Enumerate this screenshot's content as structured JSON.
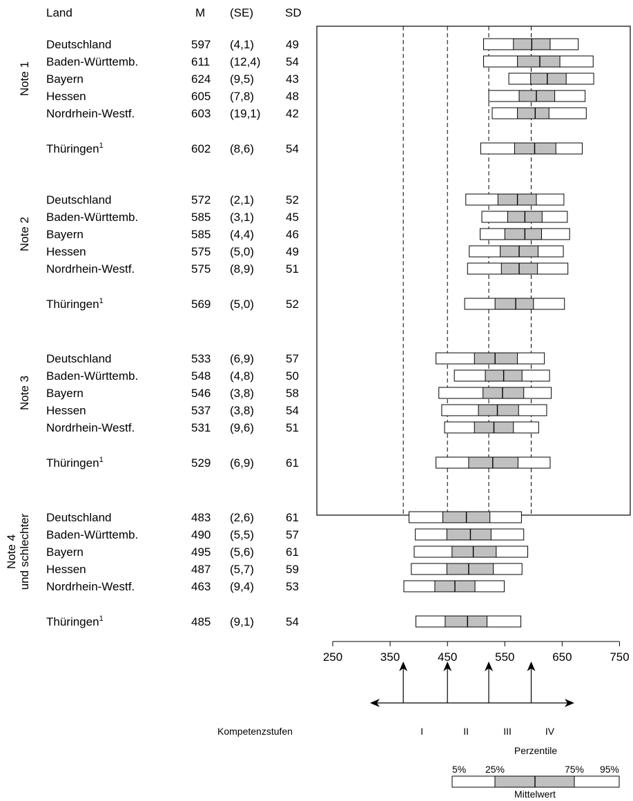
{
  "chart_data": {
    "type": "percentile-band",
    "columns": {
      "land": "Land",
      "m": "M",
      "se": "(SE)",
      "sd": "SD"
    },
    "x_ticks": [
      250,
      350,
      450,
      550,
      650,
      750
    ],
    "xlim": [
      250,
      750
    ],
    "reference_lines": [
      373,
      450,
      522,
      596
    ],
    "groups": [
      {
        "label": [
          "Note 1"
        ],
        "rows": [
          {
            "land": "Deutschland",
            "m": 597,
            "se": "(4,1)",
            "sd": 49,
            "p5": 513,
            "p25": 565,
            "p75": 629,
            "p95": 678
          },
          {
            "land": "Baden-Württemb.",
            "m": 611,
            "se": "(12,4)",
            "sd": 54,
            "p5": 513,
            "p25": 572,
            "p75": 646,
            "p95": 704
          },
          {
            "land": "Bayern",
            "m": 624,
            "se": "(9,5)",
            "sd": 43,
            "p5": 557,
            "p25": 595,
            "p75": 657,
            "p95": 705
          },
          {
            "land": "Hessen",
            "m": 605,
            "se": "(7,8)",
            "sd": 48,
            "p5": 522,
            "p25": 575,
            "p75": 637,
            "p95": 690
          },
          {
            "land": "Nordrhein-Westf.",
            "m": 603,
            "se": "(19,1)",
            "sd": 42,
            "p5": 528,
            "p25": 572,
            "p75": 627,
            "p95": 692
          },
          {
            "land": "Thüringen",
            "sup": "1",
            "m": 602,
            "se": "(8,6)",
            "sd": 54,
            "p5": 508,
            "p25": 567,
            "p75": 639,
            "p95": 685
          }
        ]
      },
      {
        "label": [
          "Note 2"
        ],
        "rows": [
          {
            "land": "Deutschland",
            "m": 572,
            "se": "(2,1)",
            "sd": 52,
            "p5": 482,
            "p25": 538,
            "p75": 605,
            "p95": 653
          },
          {
            "land": "Baden-Württemb.",
            "m": 585,
            "se": "(3,1)",
            "sd": 45,
            "p5": 510,
            "p25": 555,
            "p75": 615,
            "p95": 659
          },
          {
            "land": "Bayern",
            "m": 585,
            "se": "(4,4)",
            "sd": 46,
            "p5": 507,
            "p25": 550,
            "p75": 614,
            "p95": 663
          },
          {
            "land": "Hessen",
            "m": 575,
            "se": "(5,0)",
            "sd": 49,
            "p5": 488,
            "p25": 542,
            "p75": 608,
            "p95": 652
          },
          {
            "land": "Nordrhein-Westf.",
            "m": 575,
            "se": "(8,9)",
            "sd": 51,
            "p5": 485,
            "p25": 544,
            "p75": 607,
            "p95": 660
          },
          {
            "land": "Thüringen",
            "sup": "1",
            "m": 569,
            "se": "(5,0)",
            "sd": 52,
            "p5": 480,
            "p25": 533,
            "p75": 600,
            "p95": 654
          }
        ]
      },
      {
        "label": [
          "Note 3"
        ],
        "rows": [
          {
            "land": "Deutschland",
            "m": 533,
            "se": "(6,9)",
            "sd": 57,
            "p5": 430,
            "p25": 497,
            "p75": 572,
            "p95": 619
          },
          {
            "land": "Baden-Württemb.",
            "m": 548,
            "se": "(4,8)",
            "sd": 50,
            "p5": 462,
            "p25": 516,
            "p75": 580,
            "p95": 628
          },
          {
            "land": "Bayern",
            "m": 546,
            "se": "(3,8)",
            "sd": 58,
            "p5": 435,
            "p25": 512,
            "p75": 583,
            "p95": 631
          },
          {
            "land": "Hessen",
            "m": 537,
            "se": "(3,8)",
            "sd": 54,
            "p5": 440,
            "p25": 504,
            "p75": 574,
            "p95": 623
          },
          {
            "land": "Nordrhein-Westf.",
            "m": 531,
            "se": "(9,6)",
            "sd": 51,
            "p5": 445,
            "p25": 497,
            "p75": 565,
            "p95": 609
          },
          {
            "land": "Thüringen",
            "sup": "1",
            "m": 529,
            "se": "(6,9)",
            "sd": 61,
            "p5": 430,
            "p25": 487,
            "p75": 573,
            "p95": 629
          }
        ]
      },
      {
        "label": [
          "Note 4",
          "und schlechter"
        ],
        "rows": [
          {
            "land": "Deutschland",
            "m": 483,
            "se": "(2,6)",
            "sd": 61,
            "p5": 383,
            "p25": 442,
            "p75": 524,
            "p95": 579
          },
          {
            "land": "Baden-Württemb.",
            "m": 490,
            "se": "(5,5)",
            "sd": 57,
            "p5": 394,
            "p25": 449,
            "p75": 526,
            "p95": 583
          },
          {
            "land": "Bayern",
            "m": 495,
            "se": "(5,6)",
            "sd": 61,
            "p5": 392,
            "p25": 458,
            "p75": 535,
            "p95": 590
          },
          {
            "land": "Hessen",
            "m": 487,
            "se": "(5,7)",
            "sd": 59,
            "p5": 387,
            "p25": 449,
            "p75": 530,
            "p95": 580
          },
          {
            "land": "Nordrhein-Westf.",
            "m": 463,
            "se": "(9,4)",
            "sd": 53,
            "p5": 374,
            "p25": 428,
            "p75": 498,
            "p95": 549
          },
          {
            "land": "Thüringen",
            "sup": "1",
            "m": 485,
            "se": "(9,1)",
            "sd": 54,
            "p5": 395,
            "p25": 446,
            "p75": 519,
            "p95": 578
          }
        ]
      }
    ],
    "competence": {
      "label": "Kompetenzstufen",
      "levels": [
        "I",
        "II",
        "III",
        "IV"
      ]
    },
    "legend": {
      "title": "Perzentile",
      "labels": [
        "5%",
        "25%",
        "75%",
        "95%"
      ],
      "mean_label": "Mittelwert",
      "example": [
        250,
        350,
        450,
        550,
        650
      ]
    },
    "colors": {
      "band_inner": "#c0c0c0",
      "band_outer": "#ffffff",
      "line": "#000000"
    }
  }
}
